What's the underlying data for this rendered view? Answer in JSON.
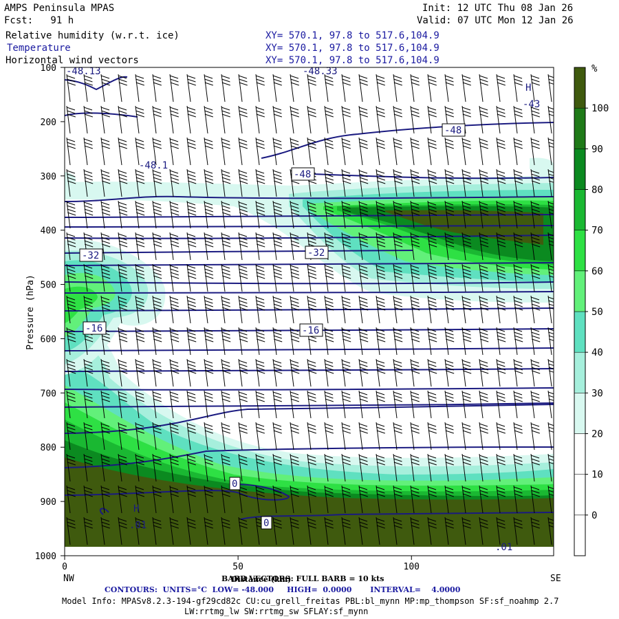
{
  "header": {
    "title": "AMPS Peninsula MPAS",
    "fcst": "Fcst:   91 h",
    "init": "Init: 12 UTC Thu 08 Jan 26",
    "valid": "Valid: 07 UTC Mon 12 Jan 26",
    "fields": [
      {
        "name": "Relative humidity (w.r.t. ice)",
        "xy": "XY= 570.1, 97.8 to 517.6,104.9"
      },
      {
        "name": "Temperature",
        "xy": "XY= 570.1, 97.8 to 517.6,104.9"
      },
      {
        "name": "Horizontal wind vectors",
        "xy": "XY= 570.1, 97.8 to 517.6,104.9"
      }
    ]
  },
  "chart_data": {
    "type": "heatmap",
    "description_fields": [
      "Relative humidity (w.r.t. ice) filled contours",
      "Temperature contours",
      "Horizontal wind barbs"
    ],
    "xlabel": "Distance (km)",
    "ylabel": "Pressure (hPa)",
    "xlim": [
      0,
      141
    ],
    "ylim": [
      1000,
      100
    ],
    "x_ticks": [
      "0",
      "50",
      "100"
    ],
    "y_ticks": [
      "100",
      "200",
      "300",
      "400",
      "500",
      "600",
      "700",
      "800",
      "900",
      "1000"
    ],
    "x_end_labels": {
      "left": "NW",
      "right": "SE"
    },
    "colorbar": {
      "unit": "%",
      "ticks": [
        "0",
        "10",
        "20",
        "30",
        "40",
        "50",
        "60",
        "70",
        "80",
        "90",
        "100"
      ],
      "colors": [
        "#ffffff",
        "#ffffff",
        "#ffffff",
        "#d8f8f0",
        "#a6efdc",
        "#5fe0c0",
        "#62f07a",
        "#2ee044",
        "#1ab832",
        "#0b8a20",
        "#3f5a0e"
      ]
    },
    "temperature_labels": [
      "-48",
      "-48",
      "-32",
      "-32",
      "-16",
      "-16",
      "0",
      "0"
    ],
    "extrema_labels": [
      "-48.13",
      "-48.33",
      "-43",
      "-48.1",
      "H",
      "H",
      ".01",
      ".01"
    ],
    "temperature_contour_color": "#1a1a80"
  },
  "footer": {
    "barb": "BARB VECTORS: FULL BARB = 10 kts",
    "contours": "CONTOURS:  UNITS=°C  LOW= -48.000     HIGH=  0.0000       INTERVAL=    4.0000",
    "model_info_1": "Model Info: MPASv8.2.3-194-gf29cd82c CU:cu_grell_freitas PBL:bl_mynn MP:mp_thompson SF:sf_noahmp 2.7",
    "model_info_2": "LW:rrtmg_lw SW:rrtmg_sw SFLAY:sf_mynn"
  }
}
